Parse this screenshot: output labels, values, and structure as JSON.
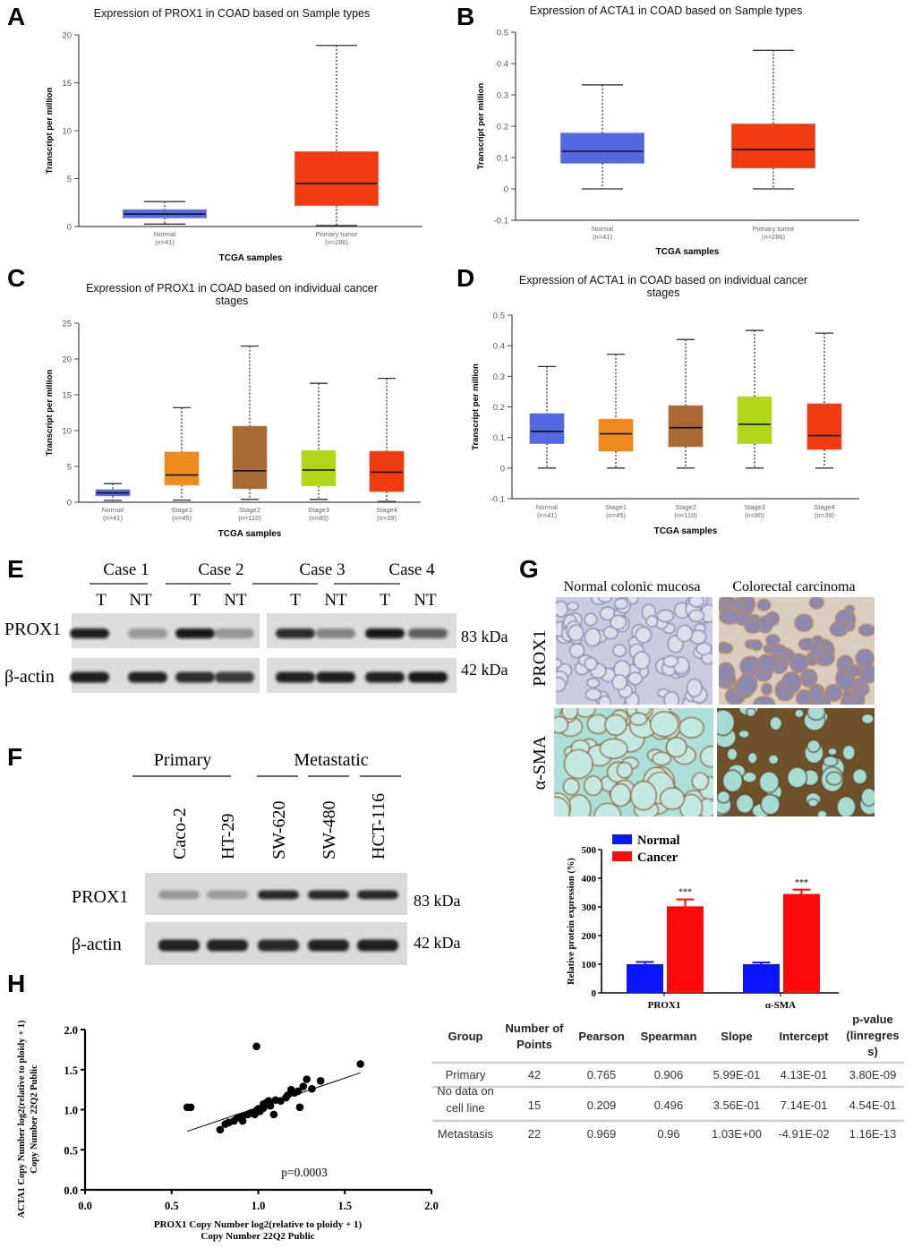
{
  "panel_letters": [
    "A",
    "B",
    "C",
    "D",
    "E",
    "F",
    "G",
    "H"
  ],
  "chart_data": [
    {
      "panel": "A",
      "type": "box",
      "title": [
        "Expression of PROX1 in COAD based on Sample types"
      ],
      "ylabel": "Transcript per million",
      "xlabel": "TCGA samples",
      "ylim": [
        0,
        20
      ],
      "yticks": [
        "0",
        "5",
        "10",
        "15",
        "20"
      ],
      "categories": [
        {
          "label": "Normal",
          "n": "(n=41)",
          "color": "#5468e2",
          "min": 0.25,
          "q1": 0.9,
          "median": 1.3,
          "q3": 1.75,
          "max": 2.6
        },
        {
          "label": "Primary tumor",
          "n": "(n=286)",
          "color": "#f03a10",
          "min": 0.1,
          "q1": 2.2,
          "median": 4.5,
          "q3": 7.8,
          "max": 18.9
        }
      ]
    },
    {
      "panel": "B",
      "type": "box",
      "title": [
        "Expression of ACTA1 in COAD based on Sample types"
      ],
      "ylabel": "Transcript per million",
      "xlabel": "TCGA samples",
      "ylim": [
        -0.1,
        0.5
      ],
      "yticks": [
        "-0.1",
        "0",
        "0.1",
        "0.2",
        "0.3",
        "0.4",
        "0.5"
      ],
      "categories": [
        {
          "label": "Normal",
          "n": "(n=41)",
          "color": "#5468e2",
          "min": 0,
          "q1": 0.082,
          "median": 0.12,
          "q3": 0.178,
          "max": 0.332
        },
        {
          "label": "Primary tumor",
          "n": "(n=286)",
          "color": "#f03a10",
          "min": 0,
          "q1": 0.067,
          "median": 0.126,
          "q3": 0.207,
          "max": 0.442
        }
      ]
    },
    {
      "panel": "C",
      "type": "box",
      "title": [
        "Expression of PROX1 in COAD based on individual cancer",
        "stages"
      ],
      "ylabel": "Transcript per million",
      "xlabel": "TCGA samples",
      "ylim": [
        0,
        25
      ],
      "yticks": [
        "0",
        "5",
        "10",
        "15",
        "20",
        "25"
      ],
      "categories": [
        {
          "label": "Normal",
          "n": "(n=41)",
          "color": "#5468e2",
          "min": 0.25,
          "q1": 0.9,
          "median": 1.3,
          "q3": 1.75,
          "max": 2.6
        },
        {
          "label": "Stage1",
          "n": "(n=45)",
          "color": "#f08a1e",
          "min": 0.3,
          "q1": 2.4,
          "median": 3.8,
          "q3": 7.0,
          "max": 13.2
        },
        {
          "label": "Stage2",
          "n": "(n=110)",
          "color": "#a86a32",
          "min": 0.4,
          "q1": 1.9,
          "median": 4.4,
          "q3": 10.6,
          "max": 21.8
        },
        {
          "label": "Stage3",
          "n": "(n=80)",
          "color": "#b2d618",
          "min": 0.4,
          "q1": 2.3,
          "median": 4.5,
          "q3": 7.2,
          "max": 16.6
        },
        {
          "label": "Stage4",
          "n": "(n=39)",
          "color": "#f03a10",
          "min": 0.1,
          "q1": 1.5,
          "median": 4.2,
          "q3": 7.1,
          "max": 17.3
        }
      ]
    },
    {
      "panel": "D",
      "type": "box",
      "title": [
        "Expression of ACTA1 in COAD based on individual cancer",
        "stages"
      ],
      "ylabel": "Transcript per million",
      "xlabel": "TCGA samples",
      "ylim": [
        -0.1,
        0.5
      ],
      "yticks": [
        "-0.1",
        "0",
        "0.1",
        "0.2",
        "0.3",
        "0.4",
        "0.5"
      ],
      "categories": [
        {
          "label": "Normal",
          "n": "(n=41)",
          "color": "#5468e2",
          "min": 0,
          "q1": 0.08,
          "median": 0.12,
          "q3": 0.178,
          "max": 0.332
        },
        {
          "label": "Stage1",
          "n": "(n=45)",
          "color": "#f08a1e",
          "min": 0,
          "q1": 0.055,
          "median": 0.112,
          "q3": 0.16,
          "max": 0.372
        },
        {
          "label": "Stage2",
          "n": "(n=110)",
          "color": "#a86a32",
          "min": 0,
          "q1": 0.07,
          "median": 0.132,
          "q3": 0.204,
          "max": 0.42
        },
        {
          "label": "Stage3",
          "n": "(n=80)",
          "color": "#b2d618",
          "min": 0,
          "q1": 0.08,
          "median": 0.143,
          "q3": 0.233,
          "max": 0.45
        },
        {
          "label": "Stage4",
          "n": "(n=39)",
          "color": "#f03a10",
          "min": 0,
          "q1": 0.061,
          "median": 0.106,
          "q3": 0.21,
          "max": 0.441
        }
      ]
    },
    {
      "panel": "G",
      "type": "bar",
      "categories": [
        "PROX1",
        "α-SMA"
      ],
      "series": [
        {
          "name": "Normal",
          "color": "#0a14ff",
          "values": [
            100,
            100
          ],
          "errors": [
            8,
            6
          ]
        },
        {
          "name": "Cancer",
          "color": "#ff0a0a",
          "values": [
            302,
            345
          ],
          "errors": [
            24,
            15
          ]
        }
      ],
      "annotations": [
        "***",
        "***"
      ],
      "ylabel": "Relative protein expression (%)",
      "ylim": [
        0,
        500
      ],
      "yticks": [
        "0",
        "100",
        "200",
        "300",
        "400",
        "500"
      ],
      "legend": "top-left"
    },
    {
      "panel": "H",
      "type": "scatter",
      "xlabel": [
        "PROX1 Copy Number log2(relative to ploidy + 1)",
        "Copy Number 22Q2 Public"
      ],
      "ylabel": [
        "ACTA1 Copy Number log2(relative to ploidy + 1)",
        "Copy Number 22Q2 Public"
      ],
      "xlim": [
        0,
        2
      ],
      "ylim": [
        0,
        2
      ],
      "xticks": [
        "0.0",
        "0.5",
        "1.0",
        "1.5",
        "2.0"
      ],
      "yticks": [
        "0.0",
        "0.5",
        "1.0",
        "1.5",
        "2.0"
      ],
      "annotation": "p=0.0003",
      "points": [
        [
          0.59,
          1.03
        ],
        [
          0.61,
          1.03
        ],
        [
          0.99,
          1.79
        ],
        [
          1.59,
          1.57
        ],
        [
          0.78,
          0.75
        ],
        [
          0.81,
          0.82
        ],
        [
          0.83,
          0.84
        ],
        [
          0.86,
          0.86
        ],
        [
          0.91,
          0.86
        ],
        [
          0.91,
          0.92
        ],
        [
          0.94,
          0.94
        ],
        [
          0.96,
          0.96
        ],
        [
          0.98,
          0.94
        ],
        [
          0.99,
          0.99
        ],
        [
          1.0,
          1.01
        ],
        [
          1.03,
          1.02
        ],
        [
          1.03,
          1.07
        ],
        [
          1.05,
          1.09
        ],
        [
          1.06,
          1.11
        ],
        [
          1.09,
          0.94
        ],
        [
          1.1,
          1.12
        ],
        [
          1.13,
          1.11
        ],
        [
          1.16,
          1.15
        ],
        [
          1.17,
          1.18
        ],
        [
          1.19,
          1.25
        ],
        [
          1.21,
          1.21
        ],
        [
          1.23,
          1.23
        ],
        [
          1.24,
          1.03
        ],
        [
          1.26,
          1.29
        ],
        [
          1.28,
          1.38
        ],
        [
          1.31,
          1.26
        ],
        [
          1.36,
          1.36
        ],
        [
          0.88,
          0.9
        ],
        [
          1.01,
          0.98
        ],
        [
          1.07,
          1.05
        ]
      ],
      "fit_line": [
        [
          0.59,
          0.73
        ],
        [
          1.59,
          1.46
        ]
      ]
    }
  ],
  "blot_E": {
    "cases": [
      "Case 1",
      "Case 2",
      "Case 3",
      "Case 4"
    ],
    "lanes": [
      "T",
      "NT",
      "T",
      "NT",
      "T",
      "NT",
      "T",
      "NT"
    ],
    "rows": [
      {
        "label": "PROX1",
        "mw": "83 kDa",
        "band_intensity": [
          0.92,
          0.35,
          0.95,
          0.32,
          0.85,
          0.45,
          0.95,
          0.62
        ]
      },
      {
        "label": "β-actin",
        "mw": "42 kDa",
        "band_intensity": [
          0.92,
          0.9,
          0.85,
          0.8,
          0.9,
          0.92,
          0.9,
          0.95
        ]
      }
    ]
  },
  "blot_F": {
    "groups": [
      "Primary",
      "Metastatic"
    ],
    "lanes": [
      "Caco-2",
      "HT-29",
      "SW-620",
      "SW-480",
      "HCT-116"
    ],
    "rows": [
      {
        "label": "PROX1",
        "mw": "83 kDa",
        "band_intensity": [
          0.3,
          0.28,
          0.88,
          0.88,
          0.88
        ]
      },
      {
        "label": "β-actin",
        "mw": "42 kDa",
        "band_intensity": [
          0.9,
          0.9,
          0.88,
          0.9,
          0.92
        ]
      }
    ]
  },
  "ihc_G": {
    "columns": [
      "Normal colonic mucosa",
      "Colorectal carcinoma"
    ],
    "rows": [
      "PROX1",
      "α-SMA"
    ]
  },
  "table_H": {
    "headers": [
      [
        "Group"
      ],
      [
        "Number of",
        "Points"
      ],
      [
        "Pearson"
      ],
      [
        "Spearman"
      ],
      [
        "Slope"
      ],
      [
        "Intercept"
      ],
      [
        "p-value",
        "(linregres",
        "s)"
      ]
    ],
    "rows": [
      [
        [
          "Primary"
        ],
        [
          "42"
        ],
        [
          "0.765"
        ],
        [
          "0.906"
        ],
        [
          "5.99E-01"
        ],
        [
          "4.13E-01"
        ],
        [
          "3.80E-09"
        ]
      ],
      [
        [
          "No data on",
          "cell line"
        ],
        [
          "15"
        ],
        [
          "0.209"
        ],
        [
          "0.496"
        ],
        [
          "3.56E-01"
        ],
        [
          "7.14E-01"
        ],
        [
          "4.54E-01"
        ]
      ],
      [
        [
          "Metastasis"
        ],
        [
          "22"
        ],
        [
          "0.969"
        ],
        [
          "0.96"
        ],
        [
          "1.03E+00"
        ],
        [
          "-4.91E-02"
        ],
        [
          "1.16E-13"
        ]
      ]
    ]
  }
}
